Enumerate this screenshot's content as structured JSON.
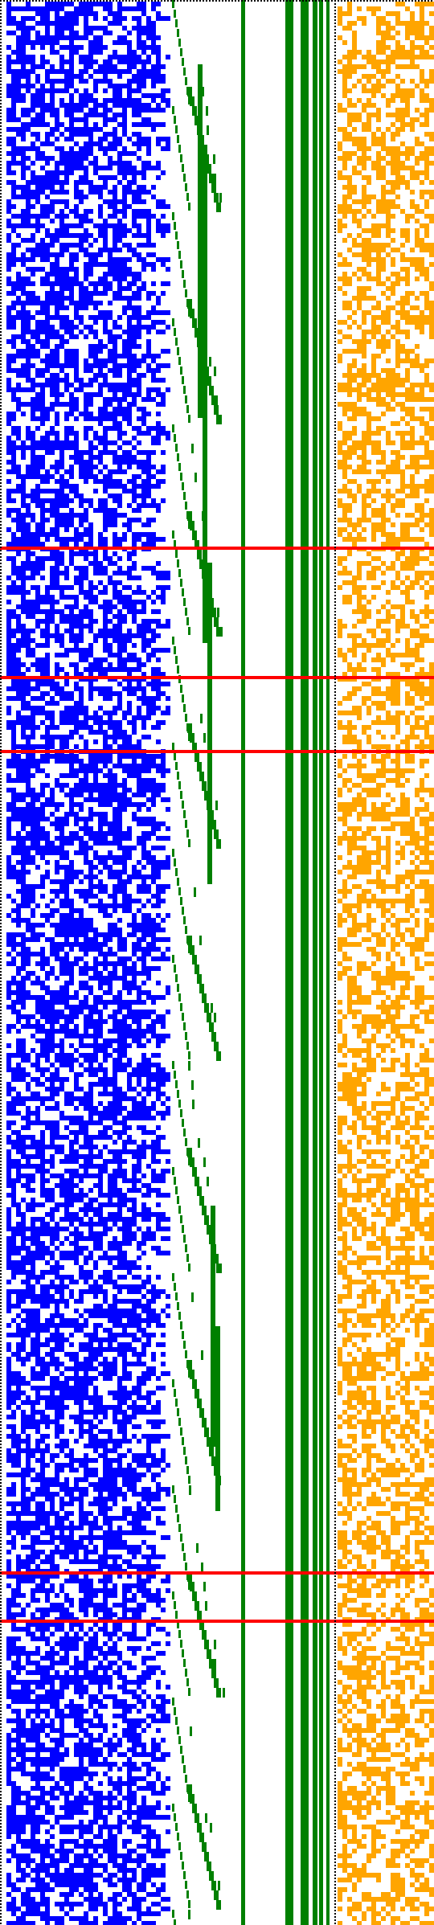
{
  "colors": {
    "background": "#ffffff",
    "blue_cells": "#0000ff",
    "green_bars": "#008000",
    "orange_cells": "#ffa500",
    "red_markers": "#ff0000",
    "border": "#000000"
  },
  "panels": [
    {
      "name": "blue-random-cell-grid",
      "color": "blue",
      "fill_ratio": 0.62
    },
    {
      "name": "green-staircase-bars",
      "color": "green"
    },
    {
      "name": "green-vertical-stripes",
      "color": "green",
      "stripe_count": 6
    },
    {
      "name": "orange-random-cell-grid",
      "color": "orange",
      "fill_ratio": 0.5
    }
  ],
  "red_marker_count": 5,
  "border_style": "dotted"
}
